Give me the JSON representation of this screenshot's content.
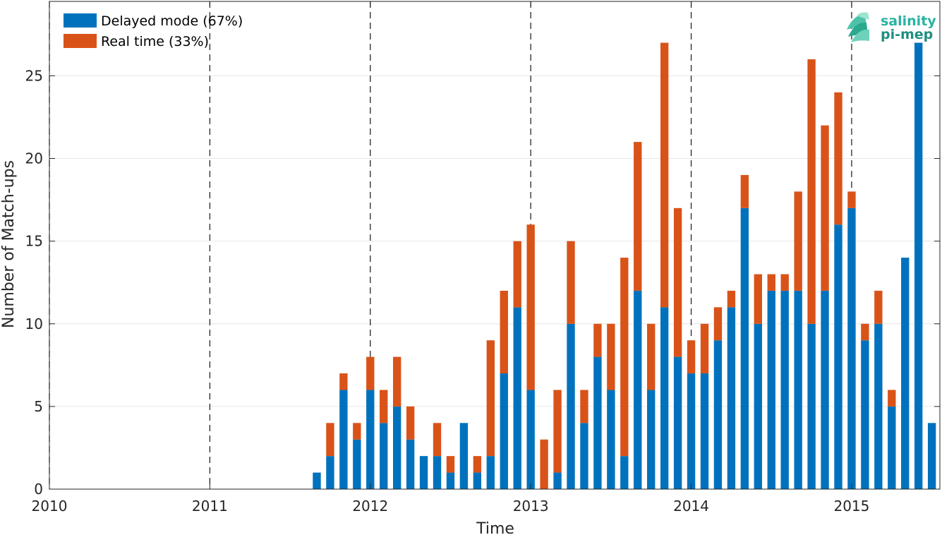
{
  "chart_data": {
    "type": "bar",
    "stacked": true,
    "xlabel": "Time",
    "ylabel": "Number of Match-ups",
    "xlim": [
      2010.0,
      2015.55
    ],
    "ylim": [
      0,
      29.5
    ],
    "x_ticks": [
      2010,
      2011,
      2012,
      2013,
      2014,
      2015
    ],
    "y_ticks": [
      0,
      5,
      10,
      15,
      20,
      25
    ],
    "year_dividers": [
      2010,
      2011,
      2012,
      2013,
      2014,
      2015
    ],
    "grid": "horizontal",
    "legend_position": "top-left",
    "x": [
      "2011-09",
      "2011-10",
      "2011-11",
      "2011-12",
      "2012-01",
      "2012-02",
      "2012-03",
      "2012-04",
      "2012-05",
      "2012-06",
      "2012-07",
      "2012-08",
      "2012-09",
      "2012-10",
      "2012-11",
      "2012-12",
      "2013-01",
      "2013-02",
      "2013-03",
      "2013-04",
      "2013-05",
      "2013-06",
      "2013-07",
      "2013-08",
      "2013-09",
      "2013-10",
      "2013-11",
      "2013-12",
      "2014-01",
      "2014-02",
      "2014-03",
      "2014-04",
      "2014-05",
      "2014-06",
      "2014-07",
      "2014-08",
      "2014-09",
      "2014-10",
      "2014-11",
      "2014-12",
      "2015-01",
      "2015-02",
      "2015-03",
      "2015-04",
      "2015-05",
      "2015-06",
      "2015-07"
    ],
    "series": [
      {
        "name": "Delayed mode (67%)",
        "color": "#0072BD",
        "values": [
          1,
          2,
          6,
          3,
          6,
          4,
          5,
          3,
          2,
          2,
          1,
          4,
          1,
          2,
          7,
          11,
          6,
          0,
          1,
          10,
          4,
          8,
          6,
          2,
          12,
          6,
          11,
          8,
          7,
          7,
          9,
          11,
          17,
          10,
          12,
          12,
          12,
          10,
          12,
          16,
          17,
          9,
          10,
          5,
          14,
          27,
          4
        ]
      },
      {
        "name": "Real time (33%)",
        "color": "#D95319",
        "values": [
          0,
          2,
          1,
          1,
          2,
          2,
          3,
          2,
          0,
          2,
          1,
          0,
          1,
          7,
          5,
          4,
          10,
          3,
          5,
          5,
          2,
          2,
          4,
          12,
          9,
          4,
          16,
          9,
          2,
          3,
          2,
          1,
          2,
          3,
          1,
          1,
          6,
          16,
          10,
          8,
          1,
          1,
          2,
          1,
          0,
          0,
          0
        ]
      }
    ]
  },
  "logo": {
    "line1": "salinity",
    "line2": "pi-mep"
  }
}
